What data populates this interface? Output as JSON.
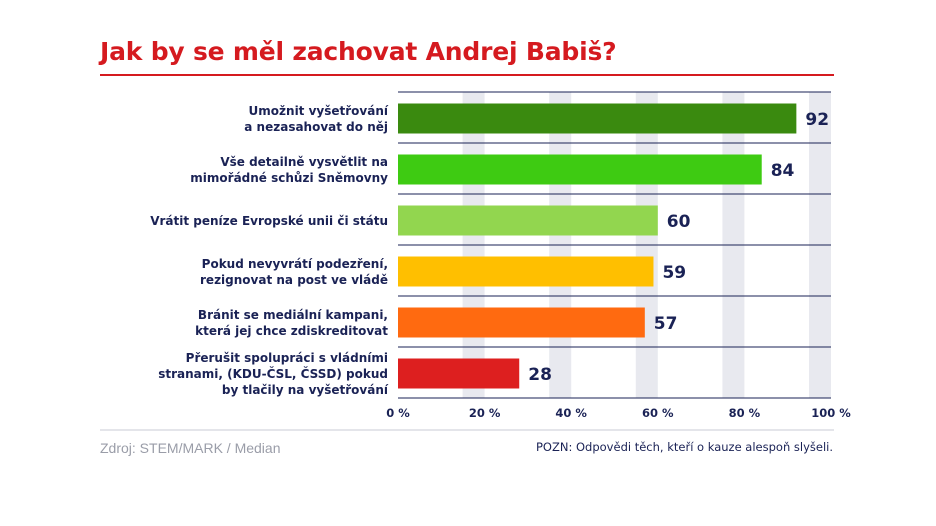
{
  "title": "Jak by se měl zachovat Andrej Babiš?",
  "source": "Zdroj: STEM/MARK / Median",
  "note": "POZN: Odpovědi těch, kteří o kauze alespoň slyšeli.",
  "chart_data": {
    "type": "bar",
    "orientation": "horizontal",
    "title": "Jak by se měl zachovat Andrej Babiš?",
    "categories": [
      [
        "Umožnit vyšetřování",
        "a nezasahovat do něj"
      ],
      [
        "Vše detailně vysvětlit na",
        "mimořádné schůzi Sněmovny"
      ],
      [
        "Vrátit peníze Evropské unii či státu"
      ],
      [
        "Pokud nevyvrátí podezření,",
        "rezignovat na post ve vládě"
      ],
      [
        "Bránit se mediální kampani,",
        "která jej chce zdiskreditovat"
      ],
      [
        "Přerušit spolupráci s vládními",
        "stranami, (KDU-ČSL, ČSSD) pokud",
        "by tlačily na vyšetřování"
      ]
    ],
    "values": [
      92,
      84,
      60,
      59,
      57,
      28
    ],
    "colors": [
      "#3a8a0f",
      "#3ecb12",
      "#92d64f",
      "#ffbf00",
      "#ff6a10",
      "#dd1f1f"
    ],
    "xlim": [
      0,
      100
    ],
    "xticks": [
      0,
      20,
      40,
      60,
      80,
      100
    ],
    "xtick_labels": [
      "0 %",
      "20 %",
      "40 %",
      "60 %",
      "80 %",
      "100 %"
    ],
    "grid": "alternating vertical bands",
    "band_color": "#e8e9ef",
    "label_color": "#1a2255",
    "value_label_color": "#1a2255"
  }
}
